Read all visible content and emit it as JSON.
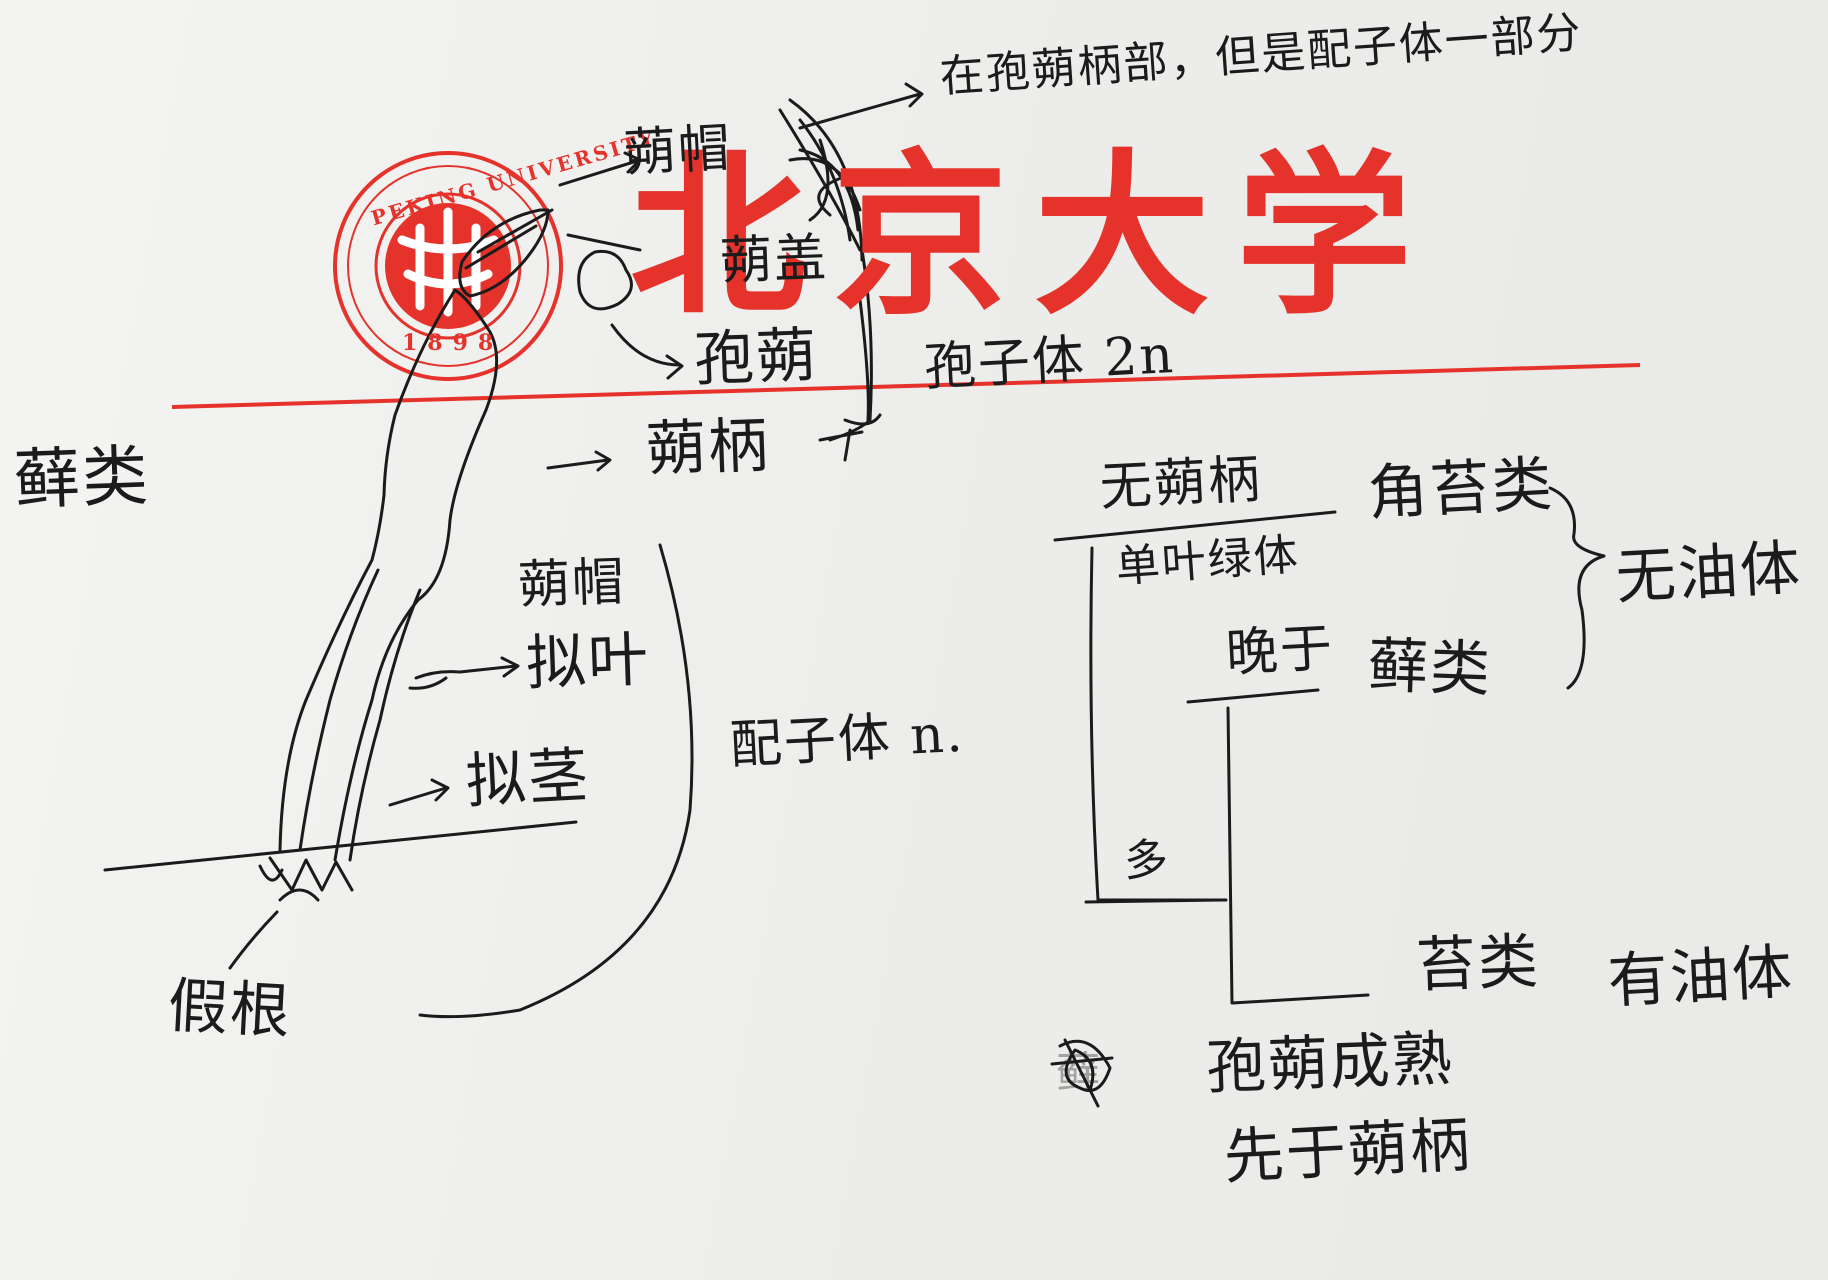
{
  "colors": {
    "ink": "#1b1b1b",
    "letterhead_red": "#e5332c",
    "paper": "#efefed"
  },
  "letterhead": {
    "seal_text": "PEKING UNIVERSITY",
    "seal_year": "1898",
    "title": "北京大学"
  },
  "diagram": {
    "left": {
      "title": "藓类",
      "capsule_cap": "蒴帽",
      "capsule_lid": "蒴盖",
      "capsule": "孢蒴",
      "sporophyte_2n": "孢子体 2n",
      "seta": "蒴柄",
      "top_note": "在孢蒴柄部，但是配子体一部分",
      "gametophyte_cap": "蒴帽",
      "phylloid": "拟叶",
      "caulid": "拟茎",
      "gametophyte_n": "配子体 n.",
      "rhizoid": "假根"
    },
    "right": {
      "no_seta": "无蒴柄",
      "thalloid": "单叶绿体",
      "late_mature": "晚于",
      "many": "多",
      "hornwort": "角苔类",
      "moss": "藓类",
      "liverwort": "苔类",
      "no_oil_body": "无油体",
      "with_oil_body": "有油体",
      "struck_mark": "藓",
      "capsule_matures": "孢蒴成熟",
      "before_seta": "先于蒴柄"
    }
  }
}
